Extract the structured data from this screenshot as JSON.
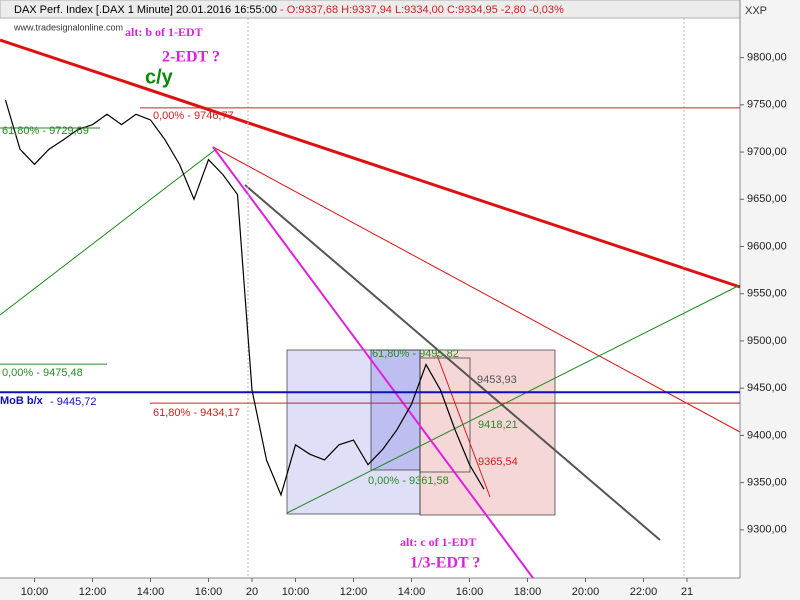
{
  "chart_data": {
    "type": "line",
    "title": "DAX Perf. Index [.DAX  1 Minute] 20.01.2016 16:55:00",
    "subtitle": "- O:9337,68 H:9337,94 L:9334,00 C:9334,95 -2,80 -0,03%",
    "source": "www.tradesignalonline.com",
    "axis_label": "XXP",
    "categories": [
      null,
      null,
      "10:00",
      null,
      null,
      null,
      "12:00",
      null,
      null,
      null,
      "14:00",
      null,
      null,
      null,
      "16:00",
      null,
      null,
      "20",
      null,
      null,
      "10:00",
      null,
      null,
      null,
      "12:00",
      null,
      null,
      null,
      "14:00",
      null,
      null,
      null,
      "16:00",
      null,
      null,
      null,
      "18:00",
      null,
      null,
      null,
      "20:00",
      null,
      null,
      null,
      "22:00",
      null,
      null,
      "21"
    ],
    "series": [
      {
        "color": "#000000",
        "values": [
          9755,
          9703,
          9687,
          9703,
          9713,
          9724,
          9729,
          9740,
          9729,
          9740,
          9734,
          9713,
          9687,
          9650,
          9692,
          9676,
          9655,
          9448,
          9374,
          9337,
          9390,
          9380,
          9374,
          9390,
          9395,
          9369,
          9385,
          9406,
          9433,
          9475,
          9448,
          9406,
          9369,
          9343,
          null,
          null,
          null,
          null,
          null,
          null,
          null,
          null,
          null,
          null,
          null,
          null,
          null,
          null
        ]
      }
    ],
    "ylim": [
      9249,
      9861
    ],
    "yticks": [
      {
        "value": 9300,
        "label": "9300,00"
      },
      {
        "value": 9350,
        "label": "9350,00"
      },
      {
        "value": 9400,
        "label": "9400,00"
      },
      {
        "value": 9450,
        "label": "9450,00"
      },
      {
        "value": 9500,
        "label": "9500,00"
      },
      {
        "value": 9550,
        "label": "9550,00"
      },
      {
        "value": 9600,
        "label": "9600,00"
      },
      {
        "value": 9650,
        "label": "9650,00"
      },
      {
        "value": 9700,
        "label": "9700,00"
      },
      {
        "value": 9750,
        "label": "9750,00"
      },
      {
        "value": 9800,
        "label": "9800,00"
      }
    ],
    "annotations": [
      {
        "text": "alt: b of 1-EDT",
        "color": "#e020e0"
      },
      {
        "text": "2-EDT ?",
        "color": "#e020e0"
      },
      {
        "text": "c/y",
        "color": "#0a8a0a"
      },
      {
        "text": "61,80% - 9729,89",
        "color": "#2a8a2a"
      },
      {
        "text": "0,00% - 9746,77",
        "color": "#d02020",
        "value": 9746.77
      },
      {
        "text": "0,00% - 9475,48",
        "color": "#2a8a2a",
        "value": 9475.48
      },
      {
        "text": "MoB b/x",
        "color": "#1010c0",
        "value": 9445.72
      },
      {
        "text": "- 9445,72",
        "color": "#1010c0"
      },
      {
        "text": "61,80% - 9434,17",
        "color": "#d02020",
        "value": 9434.17
      },
      {
        "text": "61,80% - 9495,82",
        "color": "#2a8a2a"
      },
      {
        "text": "9453,93",
        "color": "#555555"
      },
      {
        "text": "9418,21",
        "color": "#2a8a2a"
      },
      {
        "text": "9365,54",
        "color": "#d02020"
      },
      {
        "text": "0,00% - 9361,58",
        "color": "#2a8a2a"
      },
      {
        "text": "alt: c of 1-EDT",
        "color": "#e020e0"
      },
      {
        "text": "1/3-EDT ?",
        "color": "#e020e0"
      }
    ]
  }
}
